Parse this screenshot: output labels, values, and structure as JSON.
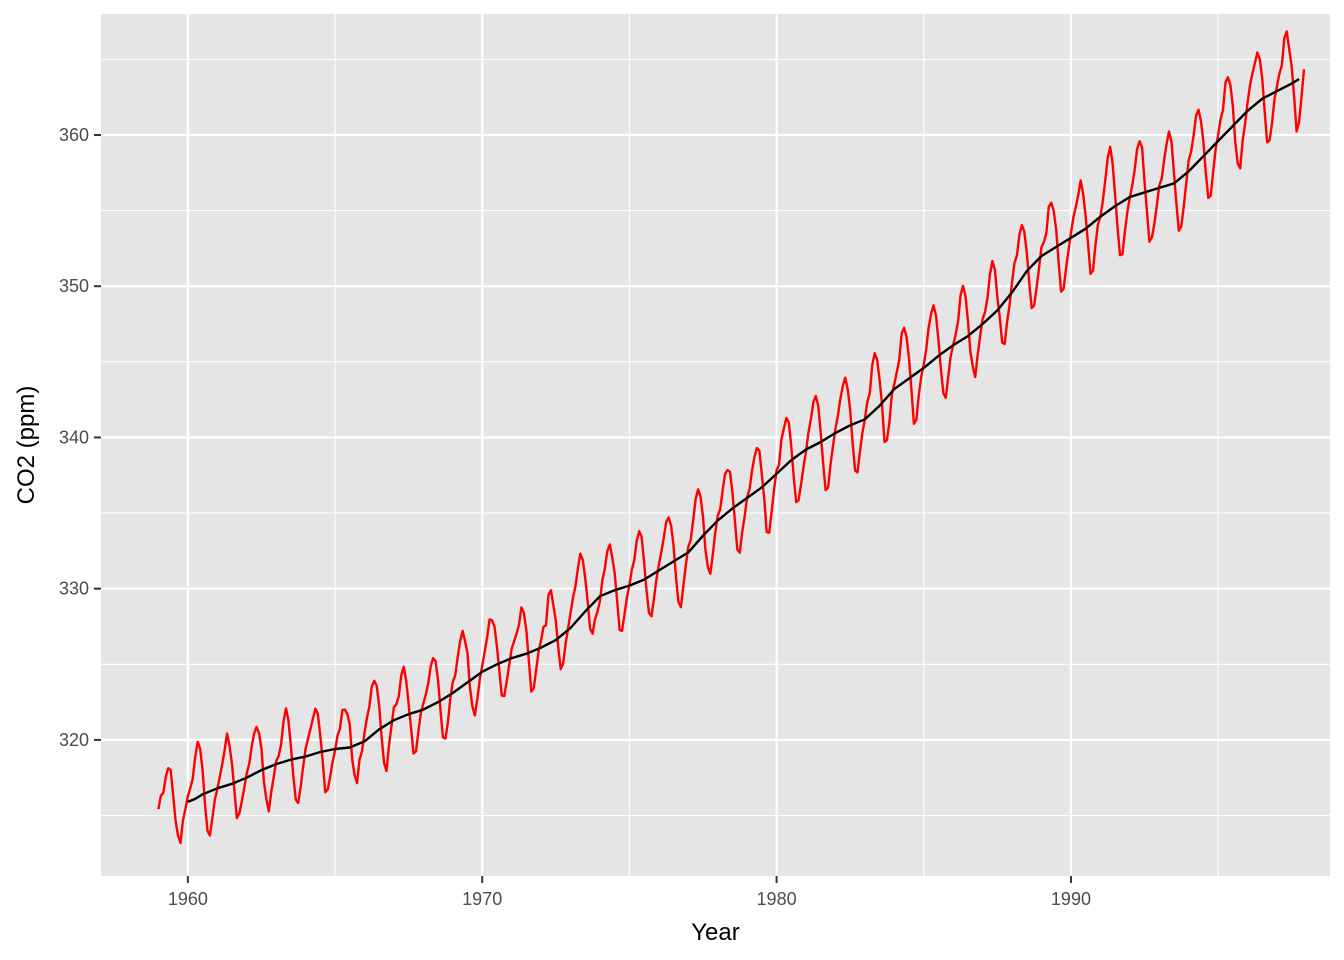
{
  "chart_data": {
    "type": "line",
    "title": "",
    "xlabel": "Year",
    "ylabel": "CO2 (ppm)",
    "xlim": [
      1957.05,
      1998.8
    ],
    "ylim": [
      311.0,
      368.0
    ],
    "x_ticks": [
      1960,
      1970,
      1980,
      1990
    ],
    "y_ticks": [
      320,
      330,
      340,
      350,
      360
    ],
    "grid": true,
    "legend": "none",
    "colors": {
      "panel": "#e5e5e5",
      "grid": "#ffffff",
      "monthly": "#ff0000",
      "trend": "#000000"
    },
    "monthly_start": 1959.0,
    "monthly_step": 0.08333,
    "monthly": [
      315.42,
      316.31,
      316.5,
      317.56,
      318.13,
      318.0,
      316.39,
      314.65,
      313.68,
      313.18,
      314.66,
      315.43,
      316.27,
      316.81,
      317.42,
      318.87,
      319.87,
      319.43,
      318.01,
      315.74,
      314.0,
      313.68,
      314.84,
      316.03,
      316.73,
      317.54,
      318.38,
      319.31,
      320.42,
      319.61,
      318.42,
      316.63,
      314.83,
      315.16,
      315.94,
      316.85,
      317.78,
      318.4,
      319.53,
      320.42,
      320.85,
      320.45,
      319.45,
      317.25,
      316.11,
      315.27,
      316.53,
      317.53,
      318.58,
      318.92,
      319.7,
      321.22,
      322.08,
      321.31,
      319.58,
      317.61,
      316.05,
      315.83,
      316.91,
      318.2,
      319.41,
      320.07,
      320.74,
      321.4,
      322.06,
      321.73,
      320.27,
      318.54,
      316.54,
      316.71,
      317.53,
      318.55,
      319.27,
      320.28,
      320.73,
      321.97,
      322.0,
      321.71,
      321.05,
      318.71,
      317.66,
      317.14,
      318.7,
      319.25,
      320.46,
      321.43,
      322.23,
      323.54,
      323.91,
      323.59,
      322.24,
      320.2,
      318.48,
      317.94,
      319.63,
      320.87,
      322.17,
      322.34,
      322.88,
      324.25,
      324.83,
      323.93,
      322.38,
      320.76,
      319.1,
      319.24,
      320.56,
      321.8,
      322.4,
      322.99,
      323.73,
      324.86,
      325.4,
      325.2,
      323.98,
      321.95,
      320.18,
      320.09,
      321.16,
      322.74,
      323.83,
      324.26,
      325.47,
      326.5,
      327.21,
      326.54,
      325.72,
      323.5,
      322.22,
      321.62,
      322.69,
      323.95,
      324.89,
      325.82,
      326.77,
      327.97,
      327.91,
      327.5,
      326.18,
      324.53,
      322.93,
      322.9,
      323.85,
      324.96,
      326.01,
      326.51,
      327.01,
      327.62,
      328.76,
      328.4,
      327.2,
      325.27,
      323.2,
      323.4,
      324.63,
      325.85,
      326.6,
      327.47,
      327.58,
      329.56,
      329.9,
      328.92,
      327.88,
      326.16,
      324.68,
      325.04,
      326.34,
      327.39,
      328.37,
      329.4,
      330.14,
      331.33,
      332.31,
      331.9,
      330.7,
      329.15,
      327.35,
      327.02,
      327.99,
      328.48,
      329.18,
      330.55,
      331.32,
      332.48,
      332.92,
      332.08,
      331.01,
      329.23,
      327.27,
      327.21,
      328.29,
      329.41,
      330.23,
      331.25,
      331.87,
      333.14,
      333.8,
      333.43,
      331.73,
      329.9,
      328.4,
      328.17,
      329.32,
      330.59,
      331.58,
      332.39,
      333.33,
      334.41,
      334.71,
      334.17,
      332.89,
      330.77,
      329.14,
      328.78,
      330.14,
      331.52,
      332.75,
      333.24,
      334.53,
      335.9,
      336.57,
      336.1,
      334.76,
      332.59,
      331.42,
      330.98,
      332.24,
      333.68,
      334.8,
      335.22,
      336.47,
      337.59,
      337.84,
      337.72,
      336.37,
      334.51,
      332.6,
      332.38,
      333.75,
      334.78,
      336.05,
      336.59,
      337.79,
      338.71,
      339.3,
      339.12,
      337.56,
      335.92,
      333.75,
      333.7,
      335.12,
      336.56,
      337.84,
      338.19,
      339.91,
      340.6,
      341.29,
      341.0,
      339.39,
      337.43,
      335.72,
      335.84,
      336.93,
      338.04,
      339.06,
      340.3,
      341.21,
      342.33,
      342.74,
      342.08,
      340.32,
      338.26,
      336.52,
      336.68,
      338.19,
      339.44,
      340.57,
      341.44,
      342.53,
      343.39,
      343.96,
      343.18,
      341.88,
      339.65,
      337.81,
      337.69,
      339.09,
      340.32,
      341.2,
      342.35,
      342.93,
      344.77,
      345.58,
      345.14,
      343.81,
      342.21,
      339.69,
      339.82,
      340.98,
      342.82,
      343.52,
      344.33,
      345.11,
      346.88,
      347.25,
      346.62,
      345.22,
      343.11,
      340.9,
      341.18,
      342.8,
      344.04,
      344.79,
      345.82,
      347.25,
      348.17,
      348.74,
      348.07,
      346.38,
      344.51,
      342.92,
      342.62,
      344.06,
      345.38,
      346.11,
      346.78,
      347.68,
      349.37,
      350.03,
      349.37,
      347.76,
      345.73,
      344.68,
      343.99,
      345.48,
      346.72,
      347.84,
      348.29,
      349.23,
      350.8,
      351.66,
      351.07,
      349.33,
      347.92,
      346.27,
      346.18,
      347.64,
      348.78,
      350.25,
      351.54,
      352.05,
      353.41,
      354.04,
      353.62,
      352.22,
      350.27,
      348.55,
      348.72,
      349.91,
      351.18,
      352.6,
      352.92,
      353.53,
      355.26,
      355.52,
      354.97,
      353.75,
      351.52,
      349.64,
      349.83,
      351.14,
      352.37,
      353.5,
      354.55,
      355.23,
      356.04,
      357.0,
      356.07,
      354.67,
      352.76,
      350.82,
      351.04,
      352.69,
      354.07,
      354.59,
      355.63,
      357.03,
      358.48,
      359.22,
      358.12,
      356.06,
      353.92,
      352.05,
      352.11,
      353.64,
      354.89,
      355.88,
      356.63,
      357.72,
      359.07,
      359.58,
      359.17,
      356.94,
      354.92,
      352.94,
      353.23,
      354.09,
      355.33,
      356.63,
      357.1,
      358.32,
      359.41,
      360.23,
      359.55,
      357.53,
      355.48,
      353.67,
      353.95,
      355.3,
      356.78,
      358.34,
      358.89,
      359.95,
      361.25,
      361.67,
      360.94,
      359.55,
      357.49,
      355.84,
      356.0,
      357.59,
      359.05,
      359.98,
      361.03,
      361.66,
      363.48,
      363.82,
      363.3,
      361.94,
      359.5,
      358.11,
      357.8,
      359.61,
      360.74,
      362.09,
      363.29,
      364.06,
      364.76,
      365.45,
      365.01,
      363.7,
      361.54,
      359.51,
      359.65,
      360.8,
      362.38,
      363.23,
      364.06,
      364.61,
      366.4,
      366.84,
      365.68,
      364.52,
      362.57,
      360.24,
      360.83,
      362.49,
      364.34
    ],
    "trend": [
      [
        1960.0,
        315.9
      ],
      [
        1960.25,
        316.1
      ],
      [
        1960.5,
        316.4
      ],
      [
        1961.0,
        316.8
      ],
      [
        1961.5,
        317.1
      ],
      [
        1962.0,
        317.5
      ],
      [
        1962.5,
        318.0
      ],
      [
        1963.0,
        318.4
      ],
      [
        1963.5,
        318.7
      ],
      [
        1964.0,
        318.9
      ],
      [
        1964.5,
        319.2
      ],
      [
        1965.0,
        319.4
      ],
      [
        1965.5,
        319.5
      ],
      [
        1966.0,
        319.9
      ],
      [
        1966.5,
        320.7
      ],
      [
        1967.0,
        321.3
      ],
      [
        1967.5,
        321.7
      ],
      [
        1968.0,
        322.0
      ],
      [
        1968.5,
        322.5
      ],
      [
        1969.0,
        323.1
      ],
      [
        1969.5,
        323.8
      ],
      [
        1970.0,
        324.5
      ],
      [
        1970.5,
        325.0
      ],
      [
        1971.0,
        325.4
      ],
      [
        1971.5,
        325.7
      ],
      [
        1972.0,
        326.1
      ],
      [
        1972.5,
        326.6
      ],
      [
        1973.0,
        327.4
      ],
      [
        1973.5,
        328.5
      ],
      [
        1974.0,
        329.5
      ],
      [
        1974.5,
        329.9
      ],
      [
        1975.0,
        330.2
      ],
      [
        1975.5,
        330.6
      ],
      [
        1976.0,
        331.2
      ],
      [
        1976.5,
        331.8
      ],
      [
        1977.0,
        332.4
      ],
      [
        1977.5,
        333.5
      ],
      [
        1978.0,
        334.5
      ],
      [
        1978.5,
        335.3
      ],
      [
        1979.0,
        336.0
      ],
      [
        1979.5,
        336.7
      ],
      [
        1980.0,
        337.6
      ],
      [
        1980.5,
        338.5
      ],
      [
        1981.0,
        339.2
      ],
      [
        1981.5,
        339.7
      ],
      [
        1982.0,
        340.3
      ],
      [
        1982.5,
        340.8
      ],
      [
        1983.0,
        341.2
      ],
      [
        1983.5,
        342.1
      ],
      [
        1984.0,
        343.2
      ],
      [
        1984.5,
        343.9
      ],
      [
        1985.0,
        344.6
      ],
      [
        1985.5,
        345.4
      ],
      [
        1986.0,
        346.1
      ],
      [
        1986.5,
        346.7
      ],
      [
        1987.0,
        347.5
      ],
      [
        1987.5,
        348.4
      ],
      [
        1988.0,
        349.6
      ],
      [
        1988.5,
        351.0
      ],
      [
        1989.0,
        352.0
      ],
      [
        1989.5,
        352.6
      ],
      [
        1990.0,
        353.2
      ],
      [
        1990.5,
        353.8
      ],
      [
        1991.0,
        354.6
      ],
      [
        1991.5,
        355.3
      ],
      [
        1992.0,
        355.9
      ],
      [
        1992.5,
        356.2
      ],
      [
        1993.0,
        356.5
      ],
      [
        1993.5,
        356.8
      ],
      [
        1994.0,
        357.6
      ],
      [
        1994.5,
        358.6
      ],
      [
        1995.0,
        359.6
      ],
      [
        1995.5,
        360.6
      ],
      [
        1996.0,
        361.6
      ],
      [
        1996.5,
        362.4
      ],
      [
        1997.0,
        362.9
      ],
      [
        1997.5,
        363.4
      ],
      [
        1997.75,
        363.7
      ]
    ]
  }
}
